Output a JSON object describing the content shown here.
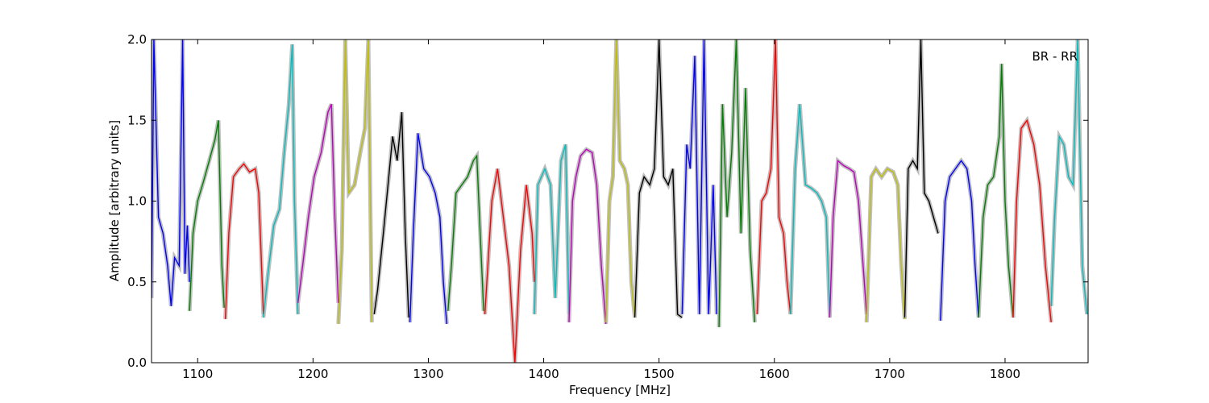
{
  "chart_data": {
    "type": "line",
    "title": "",
    "annotation": "BR - RR",
    "xlabel": "Frequency [MHz]",
    "ylabel": "Amplitude [arbitrary units]",
    "xlim": [
      1060,
      1872
    ],
    "ylim": [
      0.0,
      2.0
    ],
    "xticks": [
      1100,
      1200,
      1300,
      1400,
      1500,
      1600,
      1700,
      1800
    ],
    "xtick_labels": [
      "1100",
      "1200",
      "1300",
      "1400",
      "1500",
      "1600",
      "1700",
      "1800"
    ],
    "yticks": [
      0.0,
      0.5,
      1.0,
      1.5,
      2.0
    ],
    "ytick_labels": [
      "0.0",
      "0.5",
      "1.0",
      "1.5",
      "2.0"
    ],
    "grid": false,
    "legend": "none",
    "envelope_color": "#bfbfbf",
    "series": [
      {
        "color": "#0000ff",
        "x": [
          1060,
          1062,
          1066,
          1070,
          1074,
          1077,
          1080,
          1084,
          1087,
          1089,
          1091,
          1093
        ],
        "y": [
          0.4,
          2.0,
          0.9,
          0.8,
          0.6,
          0.35,
          0.65,
          0.6,
          2.0,
          0.55,
          0.85,
          0.5
        ]
      },
      {
        "color": "#008000",
        "x": [
          1093,
          1096,
          1100,
          1105,
          1110,
          1115,
          1118,
          1121,
          1123
        ],
        "y": [
          0.32,
          0.8,
          1.0,
          1.12,
          1.25,
          1.38,
          1.5,
          0.6,
          0.34
        ]
      },
      {
        "color": "#ff0000",
        "x": [
          1124,
          1127,
          1131,
          1136,
          1140,
          1145,
          1150,
          1153,
          1157
        ],
        "y": [
          0.27,
          0.8,
          1.15,
          1.2,
          1.23,
          1.18,
          1.2,
          1.05,
          0.3
        ]
      },
      {
        "color": "#00bfbf",
        "x": [
          1157,
          1161,
          1166,
          1171,
          1175,
          1179,
          1182,
          1184,
          1187
        ],
        "y": [
          0.28,
          0.55,
          0.85,
          0.95,
          1.3,
          1.6,
          1.97,
          1.0,
          0.3
        ]
      },
      {
        "color": "#bf00bf",
        "x": [
          1187,
          1191,
          1196,
          1201,
          1207,
          1213,
          1216,
          1219,
          1222
        ],
        "y": [
          0.37,
          0.6,
          0.9,
          1.15,
          1.3,
          1.55,
          1.6,
          0.9,
          0.37
        ]
      },
      {
        "color": "#bfbf00",
        "x": [
          1222,
          1225,
          1228,
          1231,
          1236,
          1241,
          1245,
          1248,
          1251
        ],
        "y": [
          0.24,
          0.7,
          2.0,
          1.05,
          1.1,
          1.3,
          1.45,
          2.0,
          0.25
        ]
      },
      {
        "color": "#000000",
        "x": [
          1253,
          1256,
          1261,
          1265,
          1269,
          1273,
          1277,
          1280,
          1283
        ],
        "y": [
          0.3,
          0.45,
          0.8,
          1.1,
          1.4,
          1.25,
          1.55,
          0.8,
          0.28
        ]
      },
      {
        "color": "#0000ff",
        "x": [
          1284,
          1287,
          1291,
          1296,
          1301,
          1306,
          1310,
          1313,
          1316
        ],
        "y": [
          0.25,
          0.8,
          1.42,
          1.2,
          1.15,
          1.05,
          0.9,
          0.5,
          0.24
        ]
      },
      {
        "color": "#008000",
        "x": [
          1317,
          1320,
          1324,
          1329,
          1334,
          1339,
          1342,
          1345,
          1348
        ],
        "y": [
          0.32,
          0.6,
          1.05,
          1.1,
          1.15,
          1.25,
          1.28,
          0.8,
          0.32
        ]
      },
      {
        "color": "#ff0000",
        "x": [
          1349,
          1355,
          1360,
          1365,
          1370,
          1375,
          1380,
          1385,
          1390,
          1392
        ],
        "y": [
          0.3,
          1.0,
          1.2,
          0.9,
          0.6,
          0.0,
          0.7,
          1.1,
          0.8,
          0.5
        ]
      },
      {
        "color": "#00bfbf",
        "x": [
          1392,
          1395,
          1398,
          1401,
          1406,
          1410,
          1415,
          1419,
          1422
        ],
        "y": [
          0.3,
          1.1,
          1.15,
          1.2,
          1.1,
          0.4,
          1.25,
          1.35,
          0.3
        ]
      },
      {
        "color": "#bf00bf",
        "x": [
          1422,
          1425,
          1428,
          1432,
          1437,
          1442,
          1446,
          1450,
          1454
        ],
        "y": [
          0.25,
          1.0,
          1.15,
          1.28,
          1.32,
          1.3,
          1.1,
          0.6,
          0.24
        ]
      },
      {
        "color": "#bfbf00",
        "x": [
          1454,
          1457,
          1460,
          1463,
          1466,
          1470,
          1473,
          1476,
          1479
        ],
        "y": [
          0.25,
          1.0,
          1.15,
          2.0,
          1.25,
          1.2,
          1.1,
          0.5,
          0.28
        ]
      },
      {
        "color": "#000000",
        "x": [
          1479,
          1483,
          1487,
          1492,
          1496,
          1500,
          1504,
          1508,
          1512,
          1516,
          1520
        ],
        "y": [
          0.28,
          1.05,
          1.15,
          1.1,
          1.2,
          2.0,
          1.15,
          1.1,
          1.2,
          0.3,
          0.28
        ]
      },
      {
        "color": "#0000ff",
        "x": [
          1520,
          1524,
          1527,
          1531,
          1535,
          1539,
          1543,
          1547,
          1550
        ],
        "y": [
          0.3,
          1.35,
          1.2,
          1.9,
          0.3,
          2.0,
          0.3,
          1.1,
          0.3
        ]
      },
      {
        "color": "#008000",
        "x": [
          1552,
          1555,
          1559,
          1563,
          1567,
          1571,
          1575,
          1579,
          1583
        ],
        "y": [
          0.22,
          1.6,
          0.9,
          1.3,
          2.0,
          0.8,
          1.7,
          0.7,
          0.25
        ]
      },
      {
        "color": "#ff0000",
        "x": [
          1585,
          1589,
          1593,
          1597,
          1601,
          1604,
          1608,
          1611,
          1614
        ],
        "y": [
          0.3,
          1.0,
          1.05,
          1.2,
          2.0,
          0.9,
          0.8,
          0.5,
          0.3
        ]
      },
      {
        "color": "#00bfbf",
        "x": [
          1614,
          1618,
          1622,
          1627,
          1632,
          1637,
          1641,
          1645,
          1648
        ],
        "y": [
          0.3,
          1.2,
          1.6,
          1.1,
          1.08,
          1.05,
          1.0,
          0.9,
          0.3
        ]
      },
      {
        "color": "#bf00bf",
        "x": [
          1648,
          1651,
          1655,
          1660,
          1665,
          1669,
          1673,
          1677,
          1680
        ],
        "y": [
          0.28,
          0.9,
          1.25,
          1.22,
          1.2,
          1.18,
          1.0,
          0.6,
          0.3
        ]
      },
      {
        "color": "#bfbf00",
        "x": [
          1680,
          1684,
          1688,
          1693,
          1698,
          1703,
          1707,
          1710,
          1713
        ],
        "y": [
          0.25,
          1.15,
          1.2,
          1.15,
          1.2,
          1.18,
          1.1,
          0.6,
          0.27
        ]
      },
      {
        "color": "#000000",
        "x": [
          1713,
          1716,
          1720,
          1724,
          1727,
          1730,
          1734,
          1738,
          1742
        ],
        "y": [
          0.28,
          1.2,
          1.25,
          1.2,
          2.0,
          1.05,
          1.0,
          0.9,
          0.8
        ]
      },
      {
        "color": "#0000ff",
        "x": [
          1744,
          1748,
          1752,
          1757,
          1762,
          1767,
          1771,
          1774,
          1777
        ],
        "y": [
          0.26,
          1.0,
          1.15,
          1.2,
          1.25,
          1.2,
          1.0,
          0.6,
          0.28
        ]
      },
      {
        "color": "#008000",
        "x": [
          1777,
          1781,
          1785,
          1790,
          1795,
          1797,
          1800,
          1803,
          1807
        ],
        "y": [
          0.28,
          0.9,
          1.1,
          1.15,
          1.4,
          1.85,
          1.0,
          0.6,
          0.28
        ]
      },
      {
        "color": "#ff0000",
        "x": [
          1807,
          1810,
          1814,
          1819,
          1825,
          1830,
          1835,
          1840
        ],
        "y": [
          0.28,
          1.0,
          1.45,
          1.5,
          1.35,
          1.1,
          0.6,
          0.25
        ]
      },
      {
        "color": "#00bfbf",
        "x": [
          1840,
          1843,
          1847,
          1851,
          1855,
          1859,
          1863,
          1867,
          1871
        ],
        "y": [
          0.35,
          0.9,
          1.4,
          1.35,
          1.15,
          1.1,
          2.0,
          0.6,
          0.3
        ]
      }
    ]
  }
}
